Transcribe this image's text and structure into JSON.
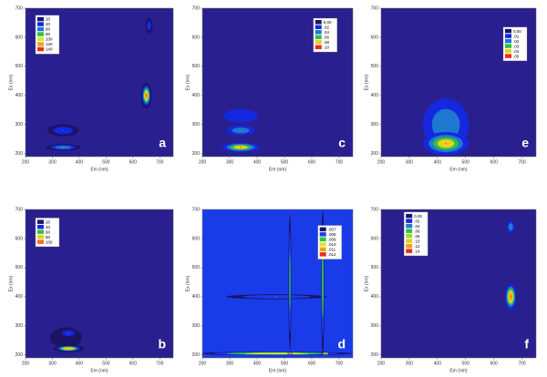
{
  "chart_data": [
    {
      "type": "contour",
      "label": "a",
      "xlabel": "Em (nm)",
      "ylabel": "Ex (nm)",
      "xlim": [
        200,
        750
      ],
      "ylim": [
        190,
        700
      ],
      "xticks": [
        200,
        300,
        400,
        500,
        600,
        700
      ],
      "yticks": [
        200,
        300,
        400,
        500,
        600,
        700
      ],
      "background": "#2a1f8e",
      "levels": [
        20,
        40,
        60,
        80,
        100,
        120,
        140
      ],
      "level_colors": [
        "#1b1466",
        "#1428e0",
        "#1e78d2",
        "#2fbf46",
        "#d8e830",
        "#f0a020",
        "#e83018"
      ],
      "peaks": [
        {
          "em": 650,
          "ex": 400,
          "value": 140,
          "em_width": 10,
          "ex_width": 22
        },
        {
          "em": 340,
          "ex": 280,
          "value": 60,
          "em_width": 40,
          "ex_width": 14
        },
        {
          "em": 340,
          "ex": 222,
          "value": 80,
          "em_width": 40,
          "ex_width": 7
        },
        {
          "em": 660,
          "ex": 640,
          "value": 60,
          "em_width": 9,
          "ex_width": 18
        }
      ]
    },
    {
      "type": "contour",
      "label": "c",
      "xlabel": "Em (nm)",
      "ylabel": "Ex (nm)",
      "xlim": [
        200,
        750
      ],
      "ylim": [
        190,
        700
      ],
      "xticks": [
        200,
        300,
        400,
        500,
        600,
        700
      ],
      "yticks": [
        200,
        300,
        400,
        500,
        600,
        700
      ],
      "background": "#2a1f8e",
      "levels": [
        {
          "value": 0,
          "label": "0.00"
        },
        {
          "value": 0.02,
          "label": ".02"
        },
        {
          "value": 0.04,
          "label": ".04"
        },
        {
          "value": 0.06,
          "label": ".06"
        },
        {
          "value": 0.08,
          "label": ".08"
        },
        {
          "value": 0.1,
          "label": ".10"
        }
      ],
      "level_colors": [
        "#1b1466",
        "#1428e0",
        "#1e78d2",
        "#2fbf46",
        "#e8d020",
        "#e83018"
      ],
      "peaks": [
        {
          "em": 340,
          "ex": 330,
          "value": 0.03,
          "em_width": 70,
          "ex_width": 25
        },
        {
          "em": 340,
          "ex": 280,
          "value": 0.06,
          "em_width": 35,
          "ex_width": 11
        },
        {
          "em": 340,
          "ex": 222,
          "value": 0.1,
          "em_width": 38,
          "ex_width": 9
        }
      ]
    },
    {
      "type": "contour",
      "label": "e",
      "xlabel": "Em (nm)",
      "ylabel": "Ex (nm)",
      "xlim": [
        200,
        750
      ],
      "ylim": [
        190,
        700
      ],
      "xticks": [
        200,
        300,
        400,
        500,
        600,
        700
      ],
      "yticks": [
        200,
        300,
        400,
        500,
        600,
        700
      ],
      "background": "#2a1f8e",
      "levels": [
        {
          "value": 0,
          "label": "0.00"
        },
        {
          "value": 0.01,
          "label": ".01"
        },
        {
          "value": 0.02,
          "label": ".02"
        },
        {
          "value": 0.03,
          "label": ".03"
        },
        {
          "value": 0.04,
          "label": ".04"
        },
        {
          "value": 0.05,
          "label": ".05"
        }
      ],
      "level_colors": [
        "#1b1466",
        "#1428e0",
        "#1e78d2",
        "#2fbf46",
        "#e8d020",
        "#e83018"
      ],
      "peaks": [
        {
          "em": 430,
          "ex": 300,
          "value": 0.03,
          "em_width": 55,
          "ex_width": 60
        },
        {
          "em": 430,
          "ex": 235,
          "value": 0.05,
          "em_width": 45,
          "ex_width": 22
        }
      ]
    },
    {
      "type": "contour",
      "label": "b",
      "xlabel": "Em (nm)",
      "ylabel": "Ex (nm)",
      "xlim": [
        200,
        750
      ],
      "ylim": [
        190,
        700
      ],
      "xticks": [
        200,
        300,
        400,
        500,
        600,
        700
      ],
      "yticks": [
        200,
        300,
        400,
        500,
        600,
        700
      ],
      "background": "#2a1f8e",
      "levels": [
        20,
        40,
        60,
        80,
        100
      ],
      "level_colors": [
        "#1b1466",
        "#1428e0",
        "#2fbf46",
        "#e8d020",
        "#f07020"
      ],
      "peaks": [
        {
          "em": 350,
          "ex": 260,
          "value": 40,
          "em_width": 50,
          "ex_width": 30
        },
        {
          "em": 360,
          "ex": 275,
          "value": 60,
          "em_width": 25,
          "ex_width": 11
        },
        {
          "em": 360,
          "ex": 222,
          "value": 100,
          "em_width": 32,
          "ex_width": 7
        }
      ]
    },
    {
      "type": "contour",
      "label": "d",
      "xlabel": "Em (nm)",
      "ylabel": "Ex (nm)",
      "xlim": [
        200,
        750
      ],
      "ylim": [
        190,
        700
      ],
      "xticks": [
        200,
        300,
        400,
        500,
        600,
        700
      ],
      "yticks": [
        200,
        300,
        400,
        500,
        600,
        700
      ],
      "background": "#1a3ce8",
      "levels": [
        {
          "value": 0.007,
          "label": ".007"
        },
        {
          "value": 0.008,
          "label": ".008"
        },
        {
          "value": 0.009,
          "label": ".009"
        },
        {
          "value": 0.01,
          "label": ".010"
        },
        {
          "value": 0.011,
          "label": ".011"
        },
        {
          "value": 0.012,
          "label": ".012"
        }
      ],
      "level_colors": [
        "#1b1466",
        "#1a3ce8",
        "#2fbf46",
        "#d8e830",
        "#f0a020",
        "#e83018"
      ],
      "peaks": [
        {
          "em": 470,
          "ex": 400,
          "value": 0.009,
          "em_width": 260,
          "ex_width": 12
        },
        {
          "em": 520,
          "ex": 450,
          "value": 0.0095,
          "em_width": 7,
          "ex_width": 300
        },
        {
          "em": 640,
          "ex": 450,
          "value": 0.0098,
          "em_width": 8,
          "ex_width": 300
        },
        {
          "em": 470,
          "ex": 205,
          "value": 0.0108,
          "em_width": 300,
          "ex_width": 7
        },
        {
          "em": 520,
          "ex": 205,
          "value": 0.012,
          "em_width": 8,
          "ex_width": 5
        },
        {
          "em": 650,
          "ex": 205,
          "value": 0.012,
          "em_width": 14,
          "ex_width": 5
        }
      ]
    },
    {
      "type": "contour",
      "label": "f",
      "xlabel": "Em (nm)",
      "ylabel": "Ex (nm)",
      "xlim": [
        200,
        750
      ],
      "ylim": [
        190,
        700
      ],
      "xticks": [
        200,
        300,
        400,
        500,
        600,
        700
      ],
      "yticks": [
        200,
        300,
        400,
        500,
        600,
        700
      ],
      "background": "#2a1f8e",
      "levels": [
        {
          "value": 0,
          "label": "0.00"
        },
        {
          "value": 0.02,
          "label": ".02"
        },
        {
          "value": 0.04,
          "label": ".04"
        },
        {
          "value": 0.06,
          "label": ".06"
        },
        {
          "value": 0.08,
          "label": ".08"
        },
        {
          "value": 0.1,
          "label": ".10"
        },
        {
          "value": 0.12,
          "label": ".12"
        },
        {
          "value": 0.14,
          "label": ".14"
        }
      ],
      "level_colors": [
        "#1b1466",
        "#1428e0",
        "#1e78d2",
        "#2fbf46",
        "#9ad838",
        "#e8d020",
        "#f0a020",
        "#e83018"
      ],
      "peaks": [
        {
          "em": 660,
          "ex": 400,
          "value": 0.14,
          "em_width": 10,
          "ex_width": 22
        },
        {
          "em": 660,
          "ex": 640,
          "value": 0.06,
          "em_width": 9,
          "ex_width": 14
        }
      ]
    }
  ]
}
